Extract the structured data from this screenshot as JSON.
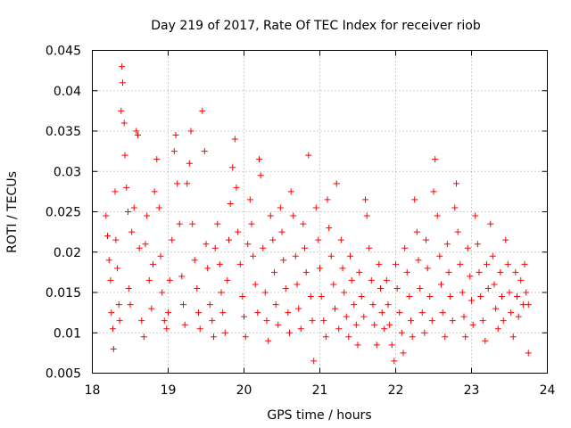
{
  "chart_data": {
    "type": "scatter",
    "title": "Day 219 of 2017, Rate Of TEC Index for receiver riob",
    "xlabel": "GPS time / hours",
    "ylabel": "ROTI / TECUs",
    "xlim": [
      18,
      24
    ],
    "ylim": [
      0.005,
      0.045
    ],
    "x_ticks": [
      18,
      19,
      20,
      21,
      22,
      23,
      24
    ],
    "y_ticks": [
      0.005,
      0.01,
      0.015,
      0.02,
      0.025,
      0.03,
      0.035,
      0.04,
      0.045
    ],
    "x_tick_labels": [
      "18",
      "19",
      "20",
      "21",
      "22",
      "23",
      "24"
    ],
    "y_tick_labels": [
      "0.005",
      "0.01",
      "0.015",
      "0.02",
      "0.025",
      "0.03",
      "0.035",
      "0.04",
      "0.045"
    ],
    "grid": true,
    "marker": "plus",
    "color": "#ff0000",
    "series": [
      {
        "points": [
          [
            18.18,
            0.0245
          ],
          [
            18.2,
            0.022
          ],
          [
            18.22,
            0.019
          ],
          [
            18.24,
            0.0165
          ],
          [
            18.25,
            0.0125
          ],
          [
            18.27,
            0.0105
          ],
          [
            18.28,
            0.008
          ],
          [
            18.3,
            0.0275
          ],
          [
            18.31,
            0.0215
          ],
          [
            18.33,
            0.018
          ],
          [
            18.35,
            0.0135
          ],
          [
            18.36,
            0.0115
          ],
          [
            18.38,
            0.0375
          ],
          [
            18.39,
            0.043
          ],
          [
            18.4,
            0.041
          ],
          [
            18.42,
            0.036
          ],
          [
            18.43,
            0.032
          ],
          [
            18.45,
            0.028
          ],
          [
            18.47,
            0.025
          ],
          [
            18.48,
            0.0155
          ],
          [
            18.5,
            0.0135
          ],
          [
            18.52,
            0.0225
          ],
          [
            18.55,
            0.0255
          ],
          [
            18.58,
            0.035
          ],
          [
            18.6,
            0.0345
          ],
          [
            18.62,
            0.0205
          ],
          [
            18.65,
            0.0115
          ],
          [
            18.68,
            0.0095
          ],
          [
            18.7,
            0.021
          ],
          [
            18.72,
            0.0245
          ],
          [
            18.75,
            0.0165
          ],
          [
            18.78,
            0.013
          ],
          [
            18.8,
            0.0185
          ],
          [
            18.82,
            0.0275
          ],
          [
            18.85,
            0.0315
          ],
          [
            18.88,
            0.0255
          ],
          [
            18.9,
            0.0195
          ],
          [
            18.92,
            0.015
          ],
          [
            18.95,
            0.0115
          ],
          [
            18.98,
            0.0105
          ],
          [
            19.0,
            0.0125
          ],
          [
            19.02,
            0.0165
          ],
          [
            19.05,
            0.0215
          ],
          [
            19.08,
            0.0325
          ],
          [
            19.1,
            0.0345
          ],
          [
            19.12,
            0.0285
          ],
          [
            19.15,
            0.0235
          ],
          [
            19.18,
            0.017
          ],
          [
            19.2,
            0.0135
          ],
          [
            19.22,
            0.011
          ],
          [
            19.25,
            0.0285
          ],
          [
            19.28,
            0.031
          ],
          [
            19.3,
            0.035
          ],
          [
            19.32,
            0.0235
          ],
          [
            19.35,
            0.019
          ],
          [
            19.38,
            0.0155
          ],
          [
            19.4,
            0.0125
          ],
          [
            19.42,
            0.0105
          ],
          [
            19.45,
            0.0375
          ],
          [
            19.48,
            0.0325
          ],
          [
            19.5,
            0.021
          ],
          [
            19.52,
            0.018
          ],
          [
            19.55,
            0.0135
          ],
          [
            19.58,
            0.0115
          ],
          [
            19.6,
            0.0095
          ],
          [
            19.62,
            0.0205
          ],
          [
            19.65,
            0.0235
          ],
          [
            19.68,
            0.0185
          ],
          [
            19.7,
            0.015
          ],
          [
            19.72,
            0.0125
          ],
          [
            19.75,
            0.01
          ],
          [
            19.78,
            0.0165
          ],
          [
            19.8,
            0.0215
          ],
          [
            19.82,
            0.026
          ],
          [
            19.85,
            0.0305
          ],
          [
            19.88,
            0.034
          ],
          [
            19.9,
            0.028
          ],
          [
            19.92,
            0.0225
          ],
          [
            19.95,
            0.0185
          ],
          [
            19.98,
            0.0145
          ],
          [
            20.0,
            0.012
          ],
          [
            20.02,
            0.0095
          ],
          [
            20.05,
            0.021
          ],
          [
            20.08,
            0.0265
          ],
          [
            20.1,
            0.0235
          ],
          [
            20.12,
            0.0195
          ],
          [
            20.15,
            0.016
          ],
          [
            20.18,
            0.0125
          ],
          [
            20.2,
            0.0315
          ],
          [
            20.22,
            0.0295
          ],
          [
            20.25,
            0.0205
          ],
          [
            20.28,
            0.015
          ],
          [
            20.3,
            0.0115
          ],
          [
            20.32,
            0.009
          ],
          [
            20.35,
            0.0245
          ],
          [
            20.38,
            0.0215
          ],
          [
            20.4,
            0.0175
          ],
          [
            20.42,
            0.0135
          ],
          [
            20.45,
            0.011
          ],
          [
            20.48,
            0.0255
          ],
          [
            20.5,
            0.0225
          ],
          [
            20.52,
            0.019
          ],
          [
            20.55,
            0.0155
          ],
          [
            20.58,
            0.0125
          ],
          [
            20.6,
            0.01
          ],
          [
            20.62,
            0.0275
          ],
          [
            20.65,
            0.0245
          ],
          [
            20.68,
            0.0195
          ],
          [
            20.7,
            0.016
          ],
          [
            20.72,
            0.013
          ],
          [
            20.75,
            0.0105
          ],
          [
            20.78,
            0.0235
          ],
          [
            20.8,
            0.0205
          ],
          [
            20.82,
            0.0175
          ],
          [
            20.85,
            0.032
          ],
          [
            20.88,
            0.0145
          ],
          [
            20.9,
            0.0115
          ],
          [
            20.92,
            0.0065
          ],
          [
            20.95,
            0.0255
          ],
          [
            20.98,
            0.0215
          ],
          [
            21.0,
            0.018
          ],
          [
            21.02,
            0.0145
          ],
          [
            21.05,
            0.0115
          ],
          [
            21.08,
            0.0095
          ],
          [
            21.1,
            0.0265
          ],
          [
            21.12,
            0.023
          ],
          [
            21.15,
            0.0195
          ],
          [
            21.18,
            0.016
          ],
          [
            21.2,
            0.013
          ],
          [
            21.22,
            0.0285
          ],
          [
            21.25,
            0.0105
          ],
          [
            21.28,
            0.0215
          ],
          [
            21.3,
            0.018
          ],
          [
            21.32,
            0.015
          ],
          [
            21.35,
            0.012
          ],
          [
            21.38,
            0.0095
          ],
          [
            21.4,
            0.0195
          ],
          [
            21.42,
            0.0165
          ],
          [
            21.45,
            0.0135
          ],
          [
            21.48,
            0.011
          ],
          [
            21.5,
            0.0085
          ],
          [
            21.52,
            0.0175
          ],
          [
            21.55,
            0.0145
          ],
          [
            21.58,
            0.012
          ],
          [
            21.6,
            0.0265
          ],
          [
            21.62,
            0.0245
          ],
          [
            21.65,
            0.0205
          ],
          [
            21.68,
            0.0165
          ],
          [
            21.7,
            0.0135
          ],
          [
            21.72,
            0.011
          ],
          [
            21.75,
            0.0085
          ],
          [
            21.78,
            0.0185
          ],
          [
            21.8,
            0.0155
          ],
          [
            21.82,
            0.0125
          ],
          [
            21.85,
            0.0105
          ],
          [
            21.88,
            0.0165
          ],
          [
            21.9,
            0.0135
          ],
          [
            21.92,
            0.011
          ],
          [
            21.95,
            0.0085
          ],
          [
            21.98,
            0.0065
          ],
          [
            22.0,
            0.0185
          ],
          [
            22.02,
            0.0155
          ],
          [
            22.05,
            0.0125
          ],
          [
            22.08,
            0.01
          ],
          [
            22.1,
            0.0075
          ],
          [
            22.12,
            0.0205
          ],
          [
            22.15,
            0.0175
          ],
          [
            22.18,
            0.0145
          ],
          [
            22.2,
            0.0115
          ],
          [
            22.22,
            0.0095
          ],
          [
            22.25,
            0.0265
          ],
          [
            22.28,
            0.0225
          ],
          [
            22.3,
            0.019
          ],
          [
            22.32,
            0.0155
          ],
          [
            22.35,
            0.0125
          ],
          [
            22.38,
            0.01
          ],
          [
            22.4,
            0.0215
          ],
          [
            22.42,
            0.018
          ],
          [
            22.45,
            0.0145
          ],
          [
            22.48,
            0.0115
          ],
          [
            22.5,
            0.0275
          ],
          [
            22.52,
            0.0315
          ],
          [
            22.55,
            0.0245
          ],
          [
            22.58,
            0.0195
          ],
          [
            22.6,
            0.016
          ],
          [
            22.62,
            0.0125
          ],
          [
            22.65,
            0.0095
          ],
          [
            22.68,
            0.021
          ],
          [
            22.7,
            0.0175
          ],
          [
            22.72,
            0.0145
          ],
          [
            22.75,
            0.0115
          ],
          [
            22.78,
            0.0255
          ],
          [
            22.8,
            0.0285
          ],
          [
            22.82,
            0.0225
          ],
          [
            22.85,
            0.0185
          ],
          [
            22.88,
            0.015
          ],
          [
            22.9,
            0.012
          ],
          [
            22.92,
            0.0095
          ],
          [
            22.95,
            0.0205
          ],
          [
            22.98,
            0.017
          ],
          [
            23.0,
            0.014
          ],
          [
            23.02,
            0.011
          ],
          [
            23.05,
            0.0245
          ],
          [
            23.08,
            0.021
          ],
          [
            23.1,
            0.0175
          ],
          [
            23.12,
            0.0145
          ],
          [
            23.15,
            0.0115
          ],
          [
            23.18,
            0.009
          ],
          [
            23.2,
            0.0185
          ],
          [
            23.22,
            0.0155
          ],
          [
            23.25,
            0.0235
          ],
          [
            23.28,
            0.0195
          ],
          [
            23.3,
            0.016
          ],
          [
            23.32,
            0.013
          ],
          [
            23.35,
            0.0105
          ],
          [
            23.38,
            0.0175
          ],
          [
            23.4,
            0.0145
          ],
          [
            23.42,
            0.0115
          ],
          [
            23.45,
            0.0215
          ],
          [
            23.48,
            0.0185
          ],
          [
            23.5,
            0.015
          ],
          [
            23.52,
            0.0125
          ],
          [
            23.55,
            0.0095
          ],
          [
            23.58,
            0.0175
          ],
          [
            23.6,
            0.0145
          ],
          [
            23.62,
            0.012
          ],
          [
            23.65,
            0.0165
          ],
          [
            23.68,
            0.0135
          ],
          [
            23.7,
            0.0185
          ],
          [
            23.72,
            0.015
          ],
          [
            23.75,
            0.0075
          ],
          [
            23.75,
            0.0135
          ]
        ]
      }
    ]
  }
}
